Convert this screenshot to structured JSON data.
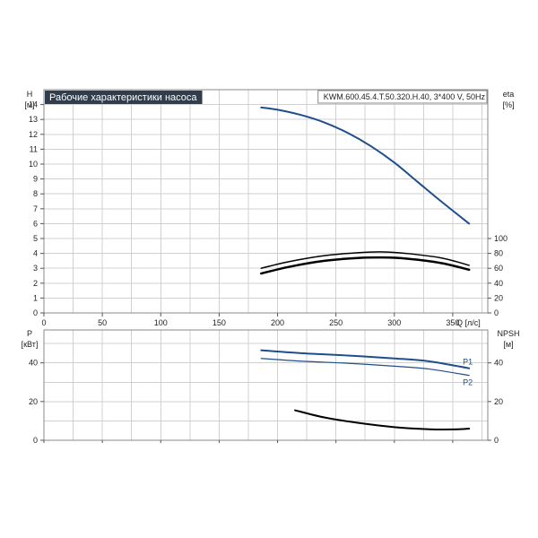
{
  "colors": {
    "head_curve": "#1f4e8c",
    "eff_curve": "#000000",
    "power_curve": "#1f4e8c",
    "npsh_curve": "#000000",
    "title_bg": "#2f3d4c"
  },
  "chart_data": [
    {
      "type": "line",
      "title": "Рабочие характеристики насоса",
      "model": "KWM.600.45.4.T.50.320.H.40, 3*400 V, 50Hz",
      "ylabel_left": "H",
      "yunit_left": "[м]",
      "ylabel_right": "eta",
      "yunit_right": "[%]",
      "xlabel": "Q [л/с]",
      "xlim": [
        0,
        380
      ],
      "xticks": [
        0,
        50,
        100,
        150,
        200,
        250,
        300,
        350
      ],
      "ylim_left": [
        0,
        15
      ],
      "yticks_left": [
        0,
        1,
        2,
        3,
        4,
        5,
        6,
        7,
        8,
        9,
        10,
        11,
        12,
        13,
        14
      ],
      "yticks_right": [
        0,
        20,
        40,
        60,
        80,
        100
      ],
      "grid": true,
      "series": [
        {
          "axis": "left",
          "color_key": "head_curve",
          "width": 2,
          "x": [
            186,
            200,
            220,
            240,
            260,
            280,
            300,
            320,
            340,
            364
          ],
          "y": [
            13.8,
            13.65,
            13.3,
            12.8,
            12.1,
            11.2,
            10.1,
            8.8,
            7.5,
            6.0
          ]
        },
        {
          "axis": "right",
          "color_key": "eff_curve",
          "width": 1.5,
          "x": [
            186,
            210,
            240,
            270,
            290,
            310,
            340,
            364
          ],
          "y": [
            60,
            69,
            77,
            81,
            82,
            80,
            74,
            64
          ]
        },
        {
          "axis": "right",
          "color_key": "eff_curve",
          "width": 2.5,
          "x": [
            186,
            210,
            240,
            270,
            290,
            310,
            340,
            364
          ],
          "y": [
            53,
            62,
            70,
            74,
            74.5,
            73,
            67,
            58
          ]
        }
      ]
    },
    {
      "type": "line",
      "ylabel_left": "P",
      "yunit_left": "[кВт]",
      "ylabel_right": "NPSH",
      "yunit_right": "[м]",
      "xlim": [
        0,
        380
      ],
      "ylim_left": [
        0,
        57
      ],
      "yticks_left": [
        0,
        20,
        40
      ],
      "yticks_right": [
        0,
        20,
        40
      ],
      "grid": true,
      "series": [
        {
          "name": "P1",
          "axis": "left",
          "color_key": "power_curve",
          "width": 2,
          "x": [
            186,
            220,
            260,
            300,
            330,
            364
          ],
          "y": [
            46.5,
            45.0,
            43.8,
            42.3,
            40.8,
            37.2
          ]
        },
        {
          "name": "P2",
          "axis": "left",
          "color_key": "power_curve",
          "width": 1.2,
          "x": [
            186,
            220,
            260,
            300,
            330,
            364
          ],
          "y": [
            42.3,
            40.9,
            39.8,
            38.3,
            36.8,
            33.5
          ]
        },
        {
          "axis": "right",
          "color_key": "npsh_curve",
          "width": 2,
          "x": [
            215,
            240,
            270,
            300,
            330,
            350,
            364
          ],
          "y": [
            15.5,
            11.8,
            8.9,
            6.8,
            5.7,
            5.6,
            6.0
          ]
        }
      ]
    }
  ]
}
